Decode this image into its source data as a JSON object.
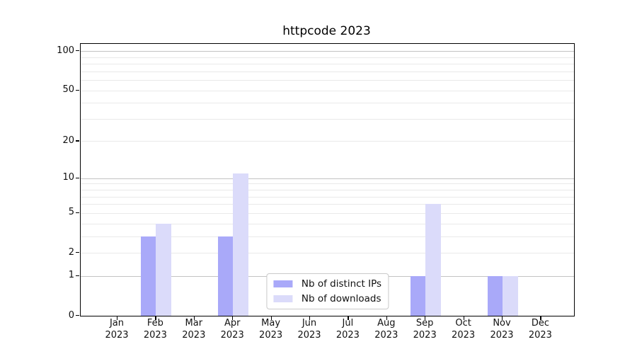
{
  "title": "httpcode 2023",
  "chart_data": {
    "type": "bar",
    "title": "httpcode 2023",
    "categories": [
      "Jan 2023",
      "Feb 2023",
      "Mar 2023",
      "Apr 2023",
      "May 2023",
      "Jun 2023",
      "Jul 2023",
      "Aug 2023",
      "Sep 2023",
      "Oct 2023",
      "Nov 2023",
      "Dec 2023"
    ],
    "series": [
      {
        "name": "Nb of distinct IPs",
        "color": "#a9a9f9",
        "values": [
          0,
          3,
          0,
          3,
          0,
          0,
          0,
          0,
          1,
          0,
          1,
          0
        ]
      },
      {
        "name": "Nb of downloads",
        "color": "#dbdbfa",
        "values": [
          0,
          4,
          0,
          11,
          0,
          0,
          0,
          0,
          6,
          0,
          1,
          0
        ]
      }
    ],
    "xlabel": "",
    "ylabel": "",
    "y_scale": "log1p",
    "ylim": [
      0,
      113.5
    ],
    "y_tick_labels": [
      0,
      1,
      2,
      5,
      10,
      20,
      50,
      100
    ],
    "y_major_gridlines": [
      1,
      10,
      100
    ],
    "y_minor_gridlines": [
      2,
      3,
      4,
      5,
      6,
      7,
      8,
      9,
      20,
      30,
      40,
      50,
      60,
      70,
      80,
      90
    ],
    "grid": true,
    "grid_color_major": "#c3c3c3",
    "grid_color_minor": "#e9e9e9",
    "legend_position": "lower center",
    "axis_color": "#000000",
    "background_color": "#ffffff"
  }
}
